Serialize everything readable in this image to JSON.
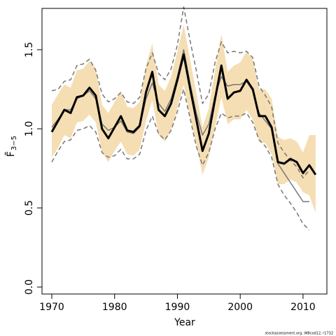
{
  "chart_data": {
    "type": "line",
    "xlabel": "Year",
    "ylabel": {
      "main": "F̄",
      "sub": "3−5"
    },
    "footer": "stockassessment.org, WBcod12, r1732",
    "x": [
      1970,
      1971,
      1972,
      1973,
      1974,
      1975,
      1976,
      1977,
      1978,
      1979,
      1980,
      1981,
      1982,
      1983,
      1984,
      1985,
      1986,
      1987,
      1988,
      1989,
      1990,
      1991,
      1992,
      1993,
      1994,
      1995,
      1996,
      1997,
      1998,
      1999,
      2000,
      2001,
      2002,
      2003,
      2004,
      2005,
      2006,
      2007,
      2008,
      2009,
      2010,
      2011,
      2012
    ],
    "xlim": [
      1968.44,
      2013.8
    ],
    "ylim": [
      -0.044,
      1.761
    ],
    "xticks": [
      1970,
      1980,
      1990,
      2000,
      2010
    ],
    "yticks": [
      {
        "value": 0,
        "label": "0.0"
      },
      0.5,
      {
        "value": 1,
        "label": "1.0"
      },
      1.5
    ],
    "band": {
      "color": "#f5deb3",
      "upper": [
        1.15,
        1.22,
        1.28,
        1.26,
        1.37,
        1.38,
        1.43,
        1.38,
        1.15,
        1.1,
        1.17,
        1.24,
        1.14,
        1.13,
        1.17,
        1.4,
        1.54,
        1.28,
        1.24,
        1.33,
        1.49,
        1.66,
        1.44,
        1.23,
        1.01,
        1.13,
        1.37,
        1.6,
        1.36,
        1.4,
        1.42,
        1.49,
        1.44,
        1.25,
        1.25,
        1.19,
        0.95,
        0.93,
        0.94,
        0.92,
        0.85,
        0.96,
        0.96
      ],
      "lower": [
        0.82,
        0.88,
        0.96,
        0.94,
        1.04,
        1.05,
        1.09,
        1.04,
        0.85,
        0.79,
        0.86,
        0.92,
        0.84,
        0.83,
        0.87,
        1.05,
        1.18,
        0.96,
        0.92,
        0.99,
        1.13,
        1.28,
        1.08,
        0.9,
        0.71,
        0.82,
        1.01,
        1.2,
        1.03,
        1.06,
        1.06,
        1.12,
        1.06,
        0.92,
        0.91,
        0.84,
        0.65,
        0.65,
        0.68,
        0.66,
        0.6,
        0.58,
        0.47
      ]
    },
    "series": [
      {
        "color": "#777777",
        "dash": true,
        "width": 1.5,
        "values": [
          1.24,
          1.25,
          1.3,
          1.31,
          1.4,
          1.41,
          1.44,
          1.37,
          1.22,
          1.17,
          1.19,
          1.23,
          1.17,
          1.16,
          1.2,
          1.38,
          1.48,
          1.35,
          1.31,
          1.38,
          1.53,
          1.77,
          1.56,
          1.37,
          1.16,
          1.22,
          1.42,
          1.55,
          1.48,
          1.49,
          1.48,
          1.49,
          1.45,
          1.27,
          1.21,
          1.14,
          0.91,
          0.85,
          0.8,
          0.76,
          0.69,
          0.74,
          null
        ]
      },
      {
        "color": "#777777",
        "dash": true,
        "width": 1.5,
        "values": [
          0.79,
          0.86,
          0.92,
          0.93,
          0.99,
          1.0,
          1.02,
          0.98,
          0.85,
          0.82,
          0.83,
          0.87,
          0.81,
          0.81,
          0.84,
          0.99,
          1.08,
          0.97,
          0.93,
          0.99,
          1.11,
          1.25,
          1.07,
          0.89,
          0.77,
          0.85,
          1.0,
          1.1,
          1.07,
          1.08,
          1.08,
          1.1,
          1.04,
          0.93,
          0.89,
          0.82,
          0.65,
          0.58,
          0.53,
          0.47,
          0.4,
          0.36,
          null
        ]
      },
      {
        "color": "#777777",
        "dash": false,
        "width": 1.5,
        "values": [
          1.01,
          1.06,
          1.12,
          1.12,
          1.19,
          1.21,
          1.24,
          1.19,
          1.03,
          0.99,
          1.01,
          1.05,
          0.98,
          0.97,
          1.01,
          1.19,
          1.29,
          1.16,
          1.11,
          1.19,
          1.33,
          1.5,
          1.29,
          1.1,
          0.96,
          1.03,
          1.21,
          1.33,
          1.27,
          1.28,
          1.28,
          1.3,
          1.24,
          1.1,
          1.05,
          1.0,
          0.78,
          0.72,
          0.66,
          0.6,
          0.54,
          0.54,
          null
        ]
      },
      {
        "color": "#000000",
        "dash": false,
        "width": 3,
        "values": [
          0.98,
          1.05,
          1.12,
          1.1,
          1.2,
          1.21,
          1.26,
          1.21,
          1.0,
          0.94,
          1.01,
          1.08,
          0.99,
          0.98,
          1.02,
          1.23,
          1.36,
          1.12,
          1.08,
          1.16,
          1.31,
          1.47,
          1.26,
          1.06,
          0.86,
          0.97,
          1.19,
          1.4,
          1.19,
          1.23,
          1.24,
          1.31,
          1.25,
          1.08,
          1.08,
          1.01,
          0.79,
          0.78,
          0.81,
          0.79,
          0.72,
          0.77,
          0.71
        ]
      }
    ]
  }
}
